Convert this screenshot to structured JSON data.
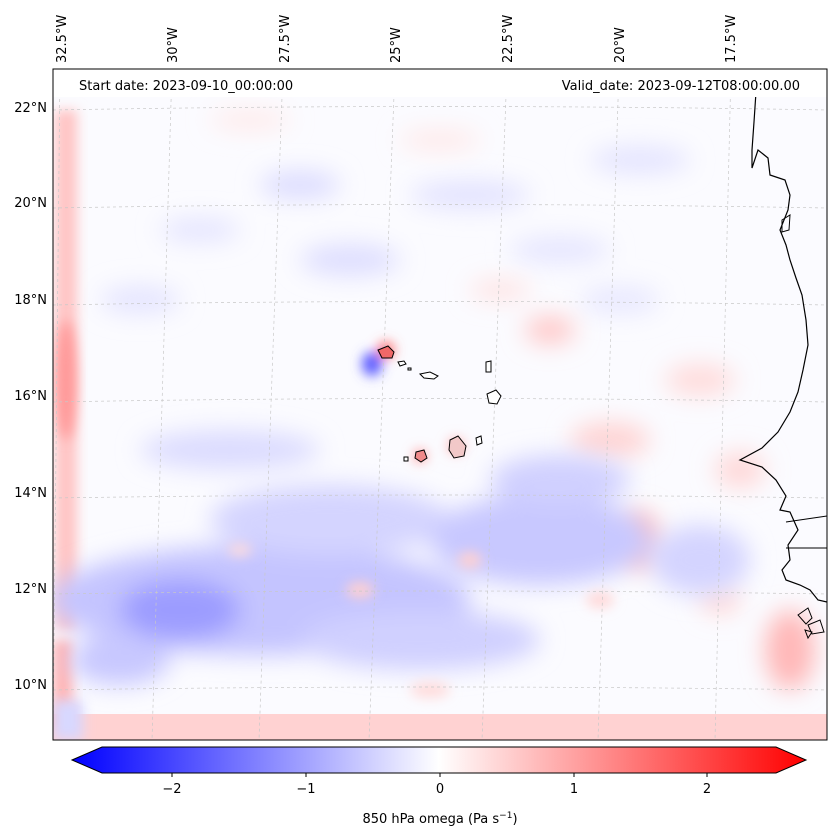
{
  "header": {
    "start_date": "Start date: 2023-09-10_00:00:00",
    "valid_date": "Valid_date: 2023-09-12T08:00:00.00"
  },
  "longitude_labels": [
    "32.5°W",
    "30°W",
    "27.5°W",
    "25°W",
    "22.5°W",
    "20°W",
    "17.5°W"
  ],
  "latitude_labels": [
    "22°N",
    "20°N",
    "18°N",
    "16°N",
    "14°N",
    "12°N",
    "10°N"
  ],
  "colorbar": {
    "label_main": "850 hPa omega (Pa s",
    "label_exp": "−1",
    "label_close": ")",
    "ticks": [
      "−2",
      "−1",
      "0",
      "1",
      "2"
    ],
    "vmin": -2.7,
    "vmax": 2.7,
    "neg_color": "#0000ff",
    "pos_color": "#ff0000"
  },
  "colors": {
    "land_outline": "#000000",
    "grid": "#c8c8c8"
  }
}
